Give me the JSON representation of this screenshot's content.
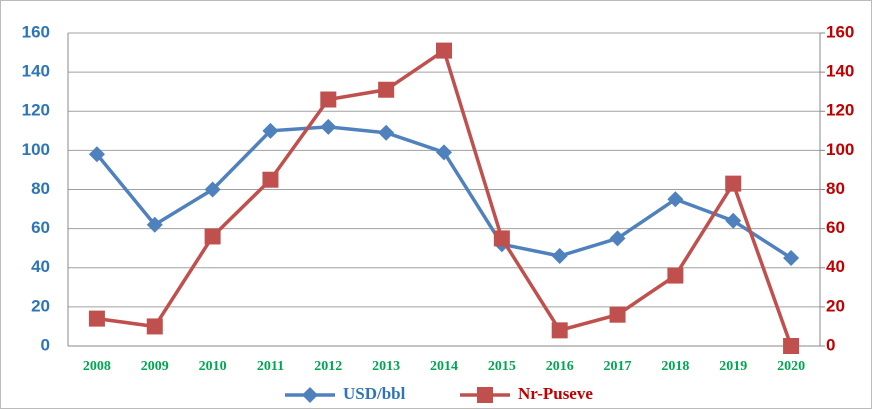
{
  "chart_data": {
    "type": "line",
    "categories": [
      "2008",
      "2009",
      "2010",
      "2011",
      "2012",
      "2013",
      "2014",
      "2015",
      "2016",
      "2017",
      "2018",
      "2019",
      "2020"
    ],
    "series": [
      {
        "name": "USD/bbl",
        "color": "#4f81bd",
        "marker": "diamond",
        "values": [
          98,
          62,
          80,
          110,
          112,
          109,
          99,
          52,
          46,
          55,
          75,
          64,
          45
        ]
      },
      {
        "name": "Nr-Puseve",
        "color": "#c0504d",
        "marker": "square",
        "axis": "y2",
        "values": [
          14,
          10,
          56,
          85,
          126,
          131,
          151,
          55,
          8,
          16,
          36,
          83,
          0
        ]
      }
    ],
    "ylim": [
      0,
      160
    ],
    "yticks": [
      0,
      20,
      40,
      60,
      80,
      100,
      120,
      140,
      160
    ],
    "y2lim": [
      0,
      160
    ],
    "y2ticks": [
      0,
      20,
      40,
      60,
      80,
      100,
      120,
      140,
      160
    ],
    "grid": true,
    "legend": "bottom"
  }
}
